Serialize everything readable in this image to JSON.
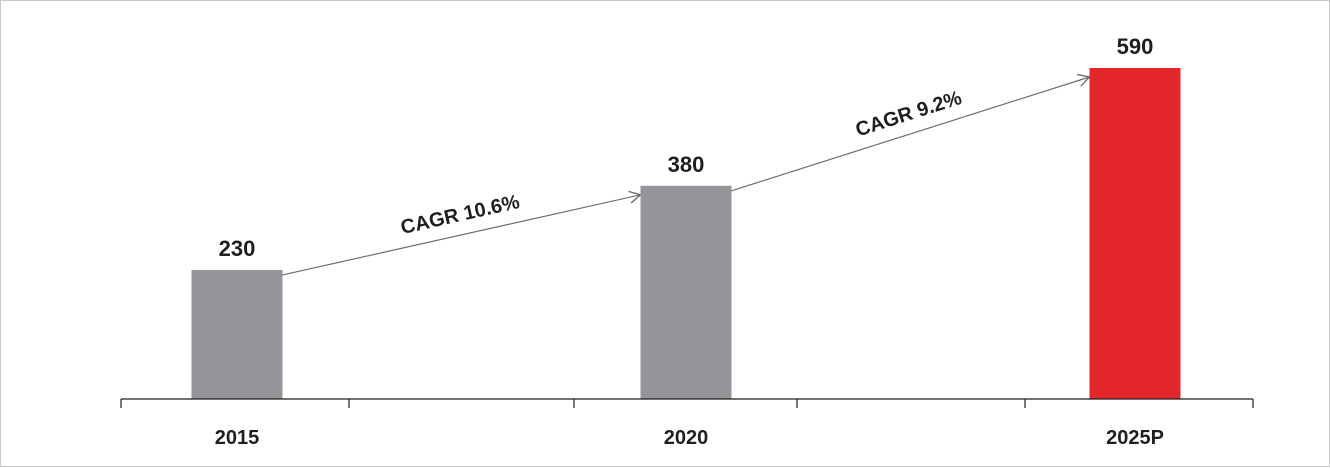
{
  "chart_data": {
    "type": "bar",
    "title": "",
    "xlabel": "",
    "ylabel": "",
    "categories": [
      "2015",
      "2020",
      "2025P"
    ],
    "values": [
      230,
      380,
      590
    ],
    "ylim": [
      0,
      590
    ],
    "grid": false,
    "legend": "none",
    "data_labels": [
      "230",
      "380",
      "590"
    ],
    "bar_colors": [
      "#939598",
      "#939598",
      "#e3262a"
    ],
    "annotations": [
      {
        "text": "CAGR 10.6%",
        "from_category": "2015",
        "to_category": "2020"
      },
      {
        "text": "CAGR 9.2%",
        "from_category": "2020",
        "to_category": "2025P"
      }
    ]
  },
  "colors": {
    "bar_actual": "#939598",
    "bar_projected": "#e3262a",
    "axis": "#1f1f1f",
    "arrow": "#6d6e71",
    "text": "#1f1f1f"
  }
}
